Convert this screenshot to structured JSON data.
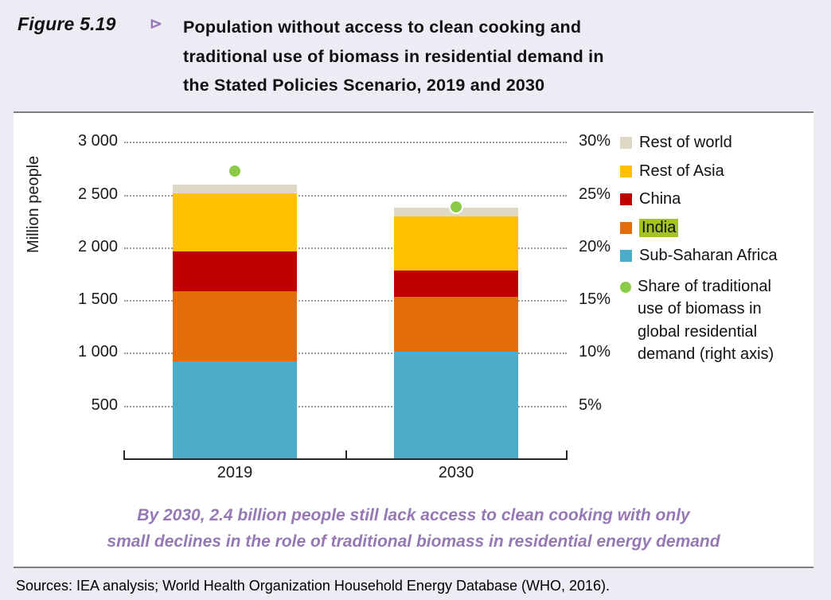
{
  "figure": {
    "label": "Figure 5.19",
    "marker": "⊳",
    "title_lines": [
      "Population without access to clean cooking and",
      "traditional use of biomass in residential demand in",
      "the Stated Policies Scenario, 2019 and 2030"
    ]
  },
  "chart_data": {
    "type": "bar",
    "stacked": true,
    "categories": [
      "2019",
      "2030"
    ],
    "ylabel_left": "Million people",
    "left_axis": {
      "ticks": [
        500,
        1000,
        1500,
        2000,
        2500,
        3000
      ],
      "labels": [
        "500",
        "1 000",
        "1 500",
        "2 000",
        "2 500",
        "3 000"
      ],
      "max": 3000,
      "grid": "dotted"
    },
    "right_axis": {
      "ticks": [
        5,
        10,
        15,
        20,
        25,
        30
      ],
      "labels": [
        "5%",
        "10%",
        "15%",
        "20%",
        "25%",
        "30%"
      ],
      "max": 30
    },
    "series": [
      {
        "name": "Sub-Saharan Africa",
        "color": "#4badc8",
        "values": [
          930,
          1020
        ]
      },
      {
        "name": "India",
        "color": "#e36d0a",
        "values": [
          660,
          520
        ]
      },
      {
        "name": "China",
        "color": "#c00000",
        "values": [
          380,
          250
        ]
      },
      {
        "name": "Rest of Asia",
        "color": "#ffc000",
        "values": [
          550,
          510
        ]
      },
      {
        "name": "Rest of world",
        "color": "#ded9c7",
        "values": [
          80,
          80
        ]
      }
    ],
    "dot_series": {
      "name": "Share of traditional use of biomass in global residential demand (right axis)",
      "color": "#8bcb47",
      "values_pct": [
        27.3,
        23.9
      ]
    },
    "legend": [
      {
        "type": "square",
        "label": "Rest of world",
        "color": "#ded9c7"
      },
      {
        "type": "square",
        "label": "Rest of Asia",
        "color": "#ffc000"
      },
      {
        "type": "square",
        "label": "China",
        "color": "#c00000"
      },
      {
        "type": "square",
        "label": "India",
        "color": "#e36d0a",
        "highlight": "#a4c325"
      },
      {
        "type": "square",
        "label": "Sub-Saharan Africa",
        "color": "#4badc8"
      },
      {
        "type": "dot",
        "color": "#8bcb47",
        "label_lines": [
          "Share of traditional",
          "use of biomass in",
          "global residential",
          "demand (right axis)"
        ]
      }
    ]
  },
  "annotation": {
    "color": "#9678b4",
    "lines": [
      "By 2030, 2.4 billion people still lack access to clean cooking with only",
      "small declines in the role of traditional biomass in residential energy demand"
    ]
  },
  "sources": "Sources: IEA analysis; World Health Organization Household Energy Database (WHO, 2016)."
}
